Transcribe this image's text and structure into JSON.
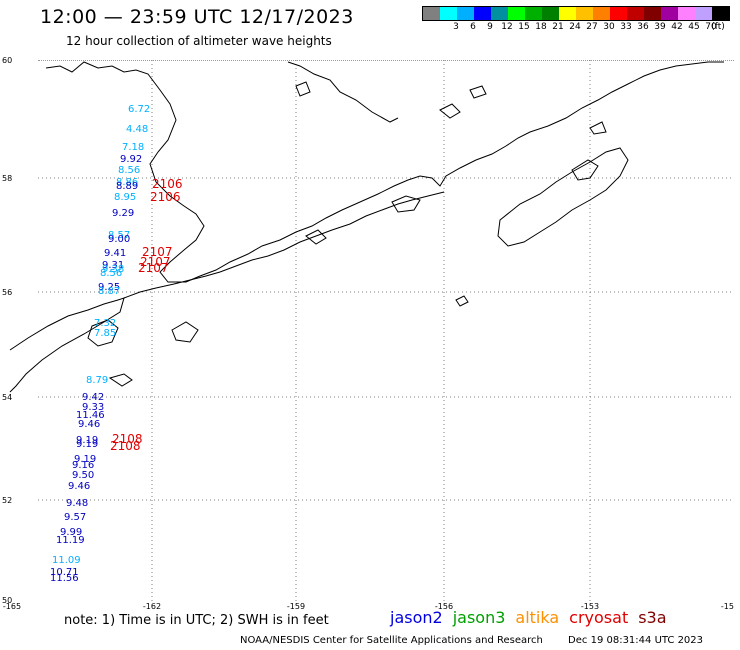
{
  "header": {
    "title": "12:00 — 23:59 UTC 12/17/2023",
    "subtitle": "12 hour collection of altimeter wave heights"
  },
  "legend": {
    "unit": "(ft)",
    "colors": [
      "#808080",
      "#00ffff",
      "#00b0ff",
      "#0000ff",
      "#0090a0",
      "#00ff00",
      "#00b000",
      "#008000",
      "#ffff00",
      "#ffc000",
      "#ff8000",
      "#ff0000",
      "#c00000",
      "#800000",
      "#a000a0",
      "#ff80ff",
      "#c0a0ff",
      "#000000"
    ],
    "labels": [
      "3",
      "6",
      "9",
      "12",
      "15",
      "18",
      "21",
      "24",
      "27",
      "30",
      "33",
      "36",
      "39",
      "42",
      "45",
      "70"
    ]
  },
  "map": {
    "lat_labels": [
      "60",
      "58",
      "56",
      "54",
      "52",
      "50"
    ],
    "lon_labels": [
      "-165",
      "-162",
      "-159",
      "-156",
      "-153",
      "-15"
    ],
    "wave_heights": [
      {
        "value": "6.72",
        "color": "#00b0ff"
      },
      {
        "value": "4.48",
        "color": "#00b0ff"
      },
      {
        "value": "7.18",
        "color": "#00b0ff"
      },
      {
        "value": "9.92",
        "color": "#0000c0"
      },
      {
        "value": "8.56",
        "color": "#00b0ff"
      },
      {
        "value": "8.86",
        "color": "#00b0ff"
      },
      {
        "value": "8.89",
        "color": "#0000c0"
      },
      {
        "value": "8.95",
        "color": "#00b0ff"
      },
      {
        "value": "9.29",
        "color": "#0000c0"
      },
      {
        "value": "8.57",
        "color": "#00b0ff"
      },
      {
        "value": "9.00",
        "color": "#0000c0"
      },
      {
        "value": "9.41",
        "color": "#0000c0"
      },
      {
        "value": "9.31",
        "color": "#0000c0"
      },
      {
        "value": "9.38",
        "color": "#00b0ff"
      },
      {
        "value": "8.56",
        "color": "#00b0ff"
      },
      {
        "value": "9.25",
        "color": "#0000c0"
      },
      {
        "value": "8.87",
        "color": "#00b0ff"
      },
      {
        "value": "7.32",
        "color": "#00b0ff"
      },
      {
        "value": "7.85",
        "color": "#00b0ff"
      },
      {
        "value": "8.79",
        "color": "#00b0ff"
      },
      {
        "value": "9.42",
        "color": "#0000c0"
      },
      {
        "value": "9.33",
        "color": "#0000c0"
      },
      {
        "value": "11.46",
        "color": "#0000c0"
      },
      {
        "value": "9.46",
        "color": "#0000c0"
      },
      {
        "value": "9.19",
        "color": "#0000c0"
      },
      {
        "value": "9.19",
        "color": "#0000c0"
      },
      {
        "value": "9.19",
        "color": "#0000c0"
      },
      {
        "value": "9.16",
        "color": "#0000c0"
      },
      {
        "value": "9.50",
        "color": "#0000c0"
      },
      {
        "value": "9.46",
        "color": "#0000c0"
      },
      {
        "value": "9.48",
        "color": "#0000c0"
      },
      {
        "value": "9.57",
        "color": "#0000c0"
      },
      {
        "value": "9.99",
        "color": "#0000c0"
      },
      {
        "value": "11.19",
        "color": "#0000c0"
      },
      {
        "value": "11.09",
        "color": "#00b0ff"
      },
      {
        "value": "10.71",
        "color": "#0000c0"
      },
      {
        "value": "11.56",
        "color": "#0000c0"
      }
    ],
    "pass_labels": [
      {
        "value": "2106",
        "color": "#e00000"
      },
      {
        "value": "2106",
        "color": "#e00000"
      },
      {
        "value": "2107",
        "color": "#e00000"
      },
      {
        "value": "2107",
        "color": "#e00000"
      },
      {
        "value": "2107",
        "color": "#e00000"
      },
      {
        "value": "2108",
        "color": "#e00000"
      },
      {
        "value": "2108",
        "color": "#e00000"
      }
    ]
  },
  "note": "note: 1) Time is in UTC; 2) SWH is in feet",
  "satellites": [
    {
      "name": "jason2",
      "color": "#0000e0"
    },
    {
      "name": "jason3",
      "color": "#00a000"
    },
    {
      "name": "altika",
      "color": "#ff9000"
    },
    {
      "name": "cryosat",
      "color": "#e00000"
    },
    {
      "name": "s3a",
      "color": "#800000"
    }
  ],
  "footer": {
    "credit": "NOAA/NESDIS Center for Satellite Applications and Research",
    "timestamp": "Dec 19 08:31:44 UTC 2023"
  }
}
